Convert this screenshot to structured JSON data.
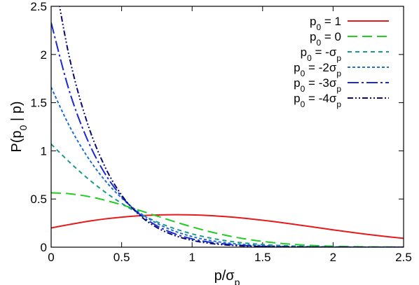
{
  "chart_data": {
    "type": "line",
    "xlabel": {
      "main": "p/σ",
      "sub": "p"
    },
    "ylabel": {
      "pre": "P(p",
      "sub": "0",
      "post": " | p)"
    },
    "xlim": [
      0,
      2.5
    ],
    "ylim": [
      0,
      2.5
    ],
    "x_ticks": [
      "0",
      "0.5",
      "1",
      "1.5",
      "2",
      "2.5"
    ],
    "y_ticks": [
      "0",
      "0.5",
      "1",
      "1.5",
      "2",
      "2.5"
    ],
    "grid": false,
    "legend_position": "top-right",
    "x": [
      0,
      0.125,
      0.25,
      0.375,
      0.5,
      0.625,
      0.75,
      0.875,
      1.0,
      1.125,
      1.25,
      1.375,
      1.5,
      1.625,
      1.75,
      1.875,
      2.0,
      2.125,
      2.25,
      2.375,
      2.5
    ],
    "series": [
      {
        "legend": {
          "pre": "p",
          "sub": "0",
          "post": " = 1",
          "post_sub": ""
        },
        "color": "#e41a1c",
        "dash": "",
        "values": [
          0.2,
          0.234,
          0.266,
          0.292,
          0.312,
          0.326,
          0.334,
          0.337,
          0.335,
          0.328,
          0.316,
          0.3,
          0.28,
          0.257,
          0.232,
          0.206,
          0.18,
          0.155,
          0.132,
          0.111,
          0.092
        ]
      },
      {
        "legend": {
          "pre": "p",
          "sub": "0",
          "post": " = 0",
          "post_sub": ""
        },
        "color": "#22cc22",
        "dash": "14,7",
        "values": [
          0.564,
          0.555,
          0.53,
          0.49,
          0.44,
          0.383,
          0.324,
          0.265,
          0.21,
          0.161,
          0.12,
          0.086,
          0.06,
          0.04,
          0.026,
          0.016,
          0.01,
          0.006,
          0.003,
          0.002,
          0.001
        ]
      },
      {
        "legend": {
          "pre": "p",
          "sub": "0",
          "post": " = -σ",
          "post_sub": "p"
        },
        "color": "#1a9a8a",
        "dash": "6,5",
        "values": [
          1.07,
          0.89,
          0.725,
          0.58,
          0.455,
          0.35,
          0.263,
          0.193,
          0.138,
          0.096,
          0.065,
          0.043,
          0.028,
          0.017,
          0.01,
          0.006,
          0.004,
          0.002,
          0.001,
          0.001,
          0.0
        ]
      },
      {
        "legend": {
          "pre": "p",
          "sub": "0",
          "post": " = -2σ",
          "post_sub": "p"
        },
        "color": "#1f6fd0",
        "dash": "4,3",
        "values": [
          1.66,
          1.27,
          0.955,
          0.705,
          0.51,
          0.36,
          0.248,
          0.167,
          0.11,
          0.07,
          0.044,
          0.027,
          0.016,
          0.009,
          0.005,
          0.003,
          0.002,
          0.001,
          0.0,
          0.0,
          0.0
        ]
      },
      {
        "legend": {
          "pre": "p",
          "sub": "0",
          "post": " = -3σ",
          "post_sub": "p"
        },
        "color": "#1a2ad0",
        "dash": "16,4,3,4",
        "values": [
          2.33,
          1.64,
          1.14,
          0.78,
          0.525,
          0.345,
          0.222,
          0.14,
          0.086,
          0.052,
          0.03,
          0.017,
          0.009,
          0.005,
          0.003,
          0.001,
          0.001,
          0.0,
          0.0,
          0.0,
          0.0
        ]
      },
      {
        "legend": {
          "pre": "p",
          "sub": "0",
          "post": " = -4σ",
          "post_sub": "p"
        },
        "color": "#0a0a70",
        "dash": "8,3,2,3,2,3",
        "values": [
          3.0,
          2.0,
          1.32,
          0.855,
          0.54,
          0.335,
          0.204,
          0.122,
          0.071,
          0.04,
          0.022,
          0.012,
          0.006,
          0.003,
          0.002,
          0.001,
          0.0,
          0.0,
          0.0,
          0.0,
          0.0
        ]
      }
    ]
  }
}
